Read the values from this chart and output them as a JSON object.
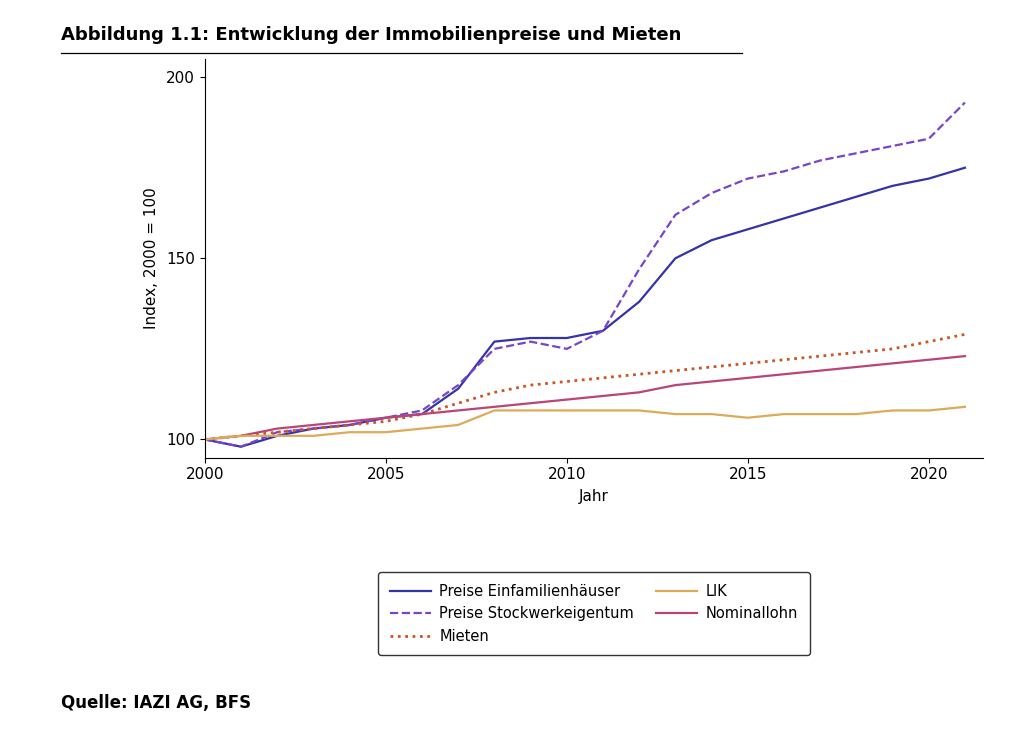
{
  "title": "Abbildung 1.1: Entwicklung der Immobilienpreise und Mieten",
  "xlabel": "Jahr",
  "ylabel": "Index, 2000 = 100",
  "source": "Quelle: IAZI AG, BFS",
  "xlim": [
    2000,
    2021.5
  ],
  "ylim": [
    95,
    205
  ],
  "yticks": [
    100,
    150,
    200
  ],
  "xticks": [
    2000,
    2005,
    2010,
    2015,
    2020
  ],
  "series": {
    "einfamilienhaus": {
      "label": "Preise Einfamilienhäuser",
      "color": "#3333aa",
      "linestyle": "solid",
      "linewidth": 1.6,
      "years": [
        2000,
        2001,
        2002,
        2003,
        2004,
        2005,
        2006,
        2007,
        2008,
        2009,
        2010,
        2011,
        2012,
        2013,
        2014,
        2015,
        2016,
        2017,
        2018,
        2019,
        2020,
        2021
      ],
      "values": [
        100,
        98,
        101,
        103,
        104,
        106,
        107,
        114,
        127,
        128,
        128,
        130,
        138,
        150,
        155,
        158,
        161,
        164,
        167,
        170,
        172,
        175
      ]
    },
    "stockwerk": {
      "label": "Preise Stockwerkeigentum",
      "color": "#7744cc",
      "linestyle": "dashed",
      "linewidth": 1.6,
      "years": [
        2000,
        2001,
        2002,
        2003,
        2004,
        2005,
        2006,
        2007,
        2008,
        2009,
        2010,
        2011,
        2012,
        2013,
        2014,
        2015,
        2016,
        2017,
        2018,
        2019,
        2020,
        2021
      ],
      "values": [
        100,
        98,
        102,
        103,
        104,
        106,
        108,
        115,
        125,
        127,
        125,
        130,
        147,
        162,
        168,
        172,
        174,
        177,
        179,
        181,
        183,
        193
      ]
    },
    "mieten": {
      "label": "Mieten",
      "color": "#cc5522",
      "linestyle": "dotted",
      "linewidth": 2.0,
      "years": [
        2000,
        2001,
        2002,
        2003,
        2004,
        2005,
        2006,
        2007,
        2008,
        2009,
        2010,
        2011,
        2012,
        2013,
        2014,
        2015,
        2016,
        2017,
        2018,
        2019,
        2020,
        2021
      ],
      "values": [
        100,
        101,
        102,
        103,
        104,
        105,
        107,
        110,
        113,
        115,
        116,
        117,
        118,
        119,
        120,
        121,
        122,
        123,
        124,
        125,
        127,
        129
      ]
    },
    "nominallohn": {
      "label": "Nominallohn",
      "color": "#bb4477",
      "linestyle": "solid",
      "linewidth": 1.6,
      "years": [
        2000,
        2001,
        2002,
        2003,
        2004,
        2005,
        2006,
        2007,
        2008,
        2009,
        2010,
        2011,
        2012,
        2013,
        2014,
        2015,
        2016,
        2017,
        2018,
        2019,
        2020,
        2021
      ],
      "values": [
        100,
        101,
        103,
        104,
        105,
        106,
        107,
        108,
        109,
        110,
        111,
        112,
        113,
        115,
        116,
        117,
        118,
        119,
        120,
        121,
        122,
        123
      ]
    },
    "lik": {
      "label": "LIK",
      "color": "#ddaa55",
      "linestyle": "solid",
      "linewidth": 1.6,
      "years": [
        2000,
        2001,
        2002,
        2003,
        2004,
        2005,
        2006,
        2007,
        2008,
        2009,
        2010,
        2011,
        2012,
        2013,
        2014,
        2015,
        2016,
        2017,
        2018,
        2019,
        2020,
        2021
      ],
      "values": [
        100,
        101,
        101,
        101,
        102,
        102,
        103,
        104,
        108,
        108,
        108,
        108,
        108,
        107,
        107,
        106,
        107,
        107,
        107,
        108,
        108,
        109
      ]
    }
  },
  "background_color": "#ffffff",
  "title_fontsize": 13,
  "axis_fontsize": 11,
  "tick_fontsize": 11,
  "legend_fontsize": 10.5,
  "source_fontsize": 12
}
